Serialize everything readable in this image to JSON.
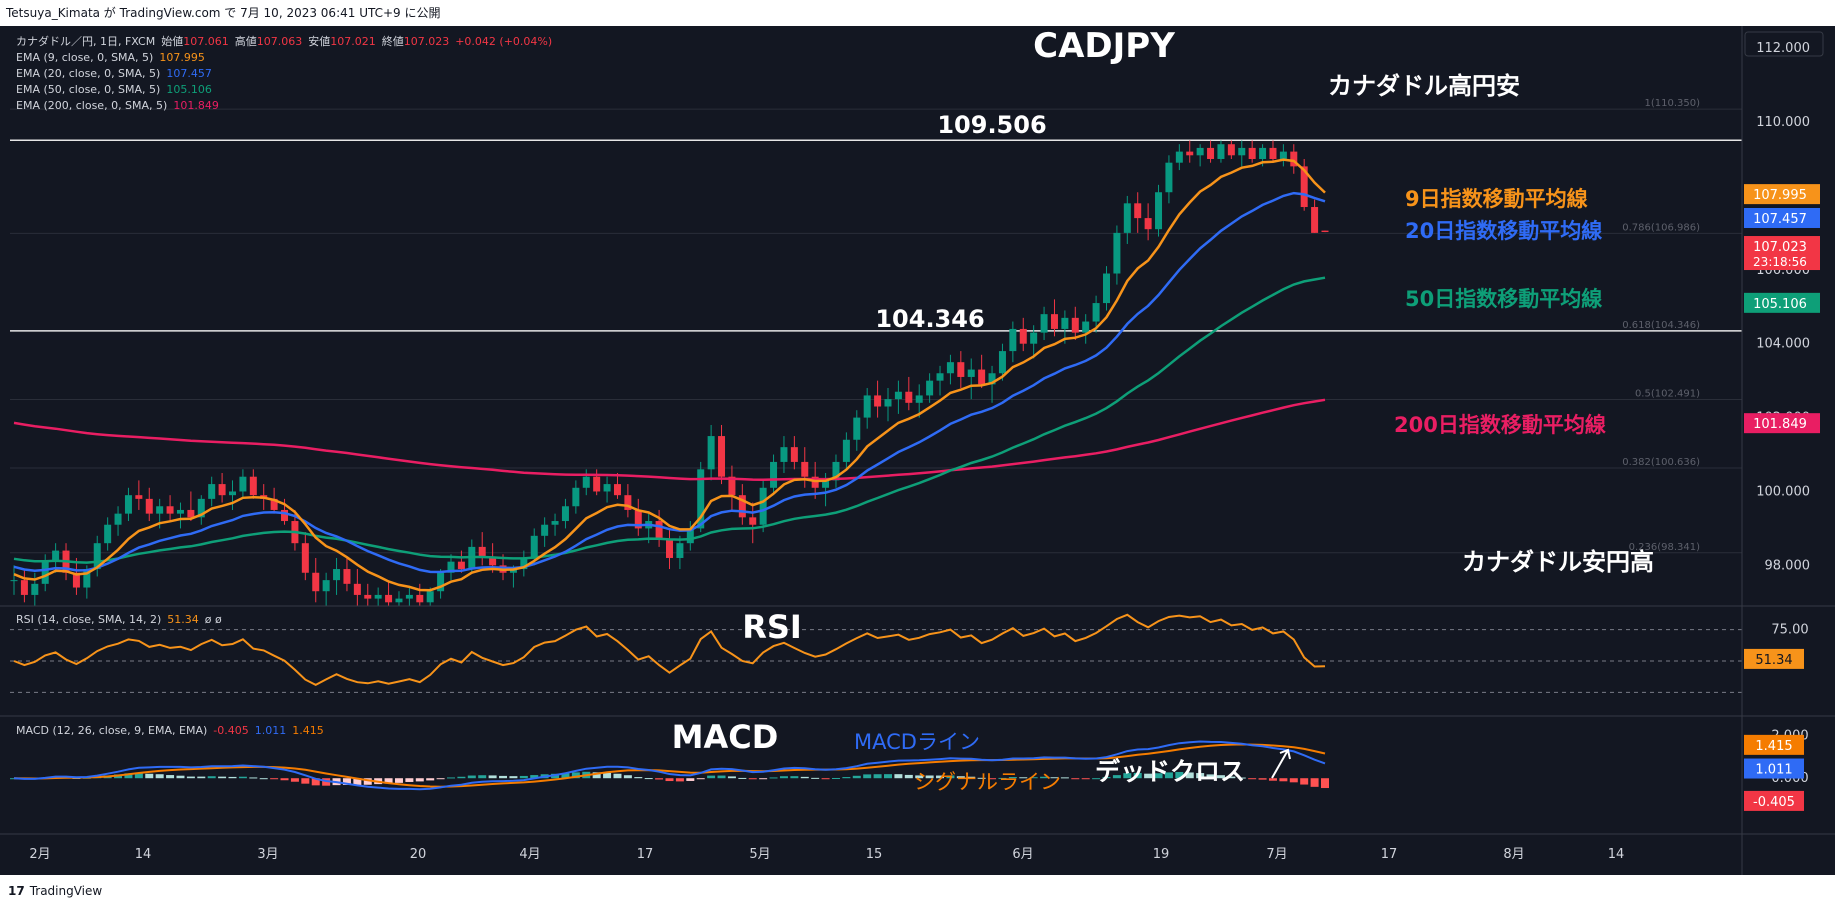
{
  "header": {
    "published_by": "Tetsuya_Kimata が TradingView.com で 7月 10, 2023 06:41 UTC+9 に公開"
  },
  "footer": {
    "brand": "TradingView",
    "logo_glyph": "17"
  },
  "legend": {
    "symbol_line": {
      "symbol": "カナダドル／円, 1日, FXCM",
      "open_label": "始値",
      "open": "107.061",
      "high_label": "高値",
      "high": "107.063",
      "low_label": "安値",
      "low": "107.021",
      "close_label": "終値",
      "close": "107.023",
      "change": "+0.042 (+0.04%)"
    },
    "ema_lines": [
      {
        "label": "EMA (9, close, 0, SMA, 5)",
        "value": "107.995",
        "color": "#f7931a"
      },
      {
        "label": "EMA (20, close, 0, SMA, 5)",
        "value": "107.457",
        "color": "#2f6bf5"
      },
      {
        "label": "EMA (50, close, 0, SMA, 5)",
        "value": "105.106",
        "color": "#0e9f78"
      },
      {
        "label": "EMA (200, close, 0, SMA, 5)",
        "value": "101.849",
        "color": "#e91e63"
      }
    ],
    "rsi": {
      "label": "RSI (14, close, SMA, 14, 2)",
      "value": "51.34",
      "extra": "ø ø"
    },
    "macd": {
      "label": "MACD (12, 26, close, 9, EMA, EMA)",
      "hist": "-0.405",
      "macd": "1.011",
      "signal": "1.415"
    }
  },
  "annotations": {
    "title": "CADJPY",
    "cad_high": "カナダドル高円安",
    "cad_low": "カナダドル安円高",
    "level_high": "109.506",
    "level_mid": "104.346",
    "ema9": "9日指数移動平均線",
    "ema20": "20日指数移動平均線",
    "ema50": "50日指数移動平均線",
    "ema200": "200日指数移動平均線",
    "rsi": "RSI",
    "macd": "MACD",
    "macd_line": "MACDライン",
    "signal_line": "シグナルライン",
    "dead_cross": "デッドクロス"
  },
  "fib_levels": [
    {
      "price": 110.35,
      "label": "1(110.350)"
    },
    {
      "price": 106.986,
      "label": "0.786(106.986)"
    },
    {
      "price": 104.346,
      "label": "0.618(104.346)"
    },
    {
      "price": 102.491,
      "label": "0.5(102.491)"
    },
    {
      "price": 100.636,
      "label": "0.382(100.636)"
    },
    {
      "price": 98.341,
      "label": "0.236(98.341)"
    }
  ],
  "price_axis": {
    "ticks": [
      "112.000",
      "110.000",
      "108.000",
      "106.000",
      "104.000",
      "102.000",
      "100.000",
      "98.000"
    ],
    "badges": [
      {
        "price": 107.995,
        "text": "107.995",
        "color": "#f7931a"
      },
      {
        "price": 107.457,
        "text": "107.457",
        "color": "#2f6bf5"
      },
      {
        "price": 107.023,
        "text": "107.023",
        "sub": "23:18:56",
        "color": "#f23645"
      },
      {
        "price": 105.106,
        "text": "105.106",
        "color": "#0e9f78"
      },
      {
        "price": 101.849,
        "text": "101.849",
        "color": "#e91e63"
      }
    ]
  },
  "rsi_axis": {
    "ticks": [
      "75.00"
    ],
    "badge": "51.34"
  },
  "macd_axis": {
    "ticks": [
      "2.000",
      "0.000"
    ],
    "badges": [
      {
        "text": "1.415",
        "color": "#f57c00"
      },
      {
        "text": "1.011",
        "color": "#2f6bf5"
      },
      {
        "text": "-0.405",
        "color": "#f23645"
      }
    ]
  },
  "time_axis": [
    "2月",
    "14",
    "3月",
    "20",
    "4月",
    "17",
    "5月",
    "15",
    "6月",
    "19",
    "7月",
    "17",
    "8月",
    "14"
  ],
  "chart_data": {
    "type": "candlestick",
    "symbol": "CADJPY",
    "timeframe": "1日",
    "y_range": [
      96.9,
      112.6
    ],
    "horizontal_levels": [
      109.506,
      104.346
    ],
    "ohlc": [
      [
        97.6,
        98.0,
        97.2,
        97.6
      ],
      [
        97.6,
        97.9,
        97.0,
        97.2
      ],
      [
        97.2,
        97.8,
        96.9,
        97.5
      ],
      [
        97.5,
        98.3,
        97.3,
        98.1
      ],
      [
        98.1,
        98.6,
        97.8,
        98.4
      ],
      [
        98.4,
        98.6,
        97.6,
        97.8
      ],
      [
        97.8,
        98.2,
        97.2,
        97.4
      ],
      [
        97.4,
        98.0,
        97.1,
        97.9
      ],
      [
        97.9,
        98.8,
        97.7,
        98.6
      ],
      [
        98.6,
        99.3,
        98.4,
        99.1
      ],
      [
        99.1,
        99.6,
        98.8,
        99.4
      ],
      [
        99.4,
        100.1,
        99.2,
        99.9
      ],
      [
        99.9,
        100.3,
        99.5,
        99.8
      ],
      [
        99.8,
        100.1,
        99.2,
        99.4
      ],
      [
        99.4,
        99.8,
        99.0,
        99.6
      ],
      [
        99.6,
        99.9,
        99.2,
        99.4
      ],
      [
        99.4,
        99.7,
        99.0,
        99.5
      ],
      [
        99.5,
        100.0,
        99.2,
        99.3
      ],
      [
        99.3,
        99.9,
        99.1,
        99.8
      ],
      [
        99.8,
        100.4,
        99.6,
        100.2
      ],
      [
        100.2,
        100.5,
        99.7,
        99.9
      ],
      [
        99.9,
        100.3,
        99.5,
        100.0
      ],
      [
        100.0,
        100.6,
        99.8,
        100.4
      ],
      [
        100.4,
        100.6,
        99.8,
        99.9
      ],
      [
        99.9,
        100.2,
        99.5,
        99.8
      ],
      [
        99.8,
        100.1,
        99.4,
        99.5
      ],
      [
        99.5,
        99.8,
        99.1,
        99.2
      ],
      [
        99.2,
        99.5,
        98.4,
        98.6
      ],
      [
        98.6,
        98.9,
        97.6,
        97.8
      ],
      [
        97.8,
        98.2,
        97.0,
        97.3
      ],
      [
        97.3,
        97.8,
        96.9,
        97.6
      ],
      [
        97.6,
        98.2,
        97.2,
        97.9
      ],
      [
        97.9,
        98.2,
        97.3,
        97.5
      ],
      [
        97.5,
        97.9,
        96.9,
        97.2
      ],
      [
        97.2,
        97.5,
        96.9,
        97.1
      ],
      [
        97.1,
        97.4,
        96.9,
        97.2
      ],
      [
        97.2,
        97.6,
        96.9,
        97.0
      ],
      [
        97.0,
        97.3,
        96.9,
        97.1
      ],
      [
        97.1,
        97.4,
        96.9,
        97.2
      ],
      [
        97.2,
        97.5,
        96.9,
        97.0
      ],
      [
        97.0,
        97.4,
        96.9,
        97.3
      ],
      [
        97.3,
        97.9,
        97.1,
        97.8
      ],
      [
        97.8,
        98.3,
        97.6,
        98.1
      ],
      [
        98.1,
        98.4,
        97.8,
        97.9
      ],
      [
        97.9,
        98.7,
        97.8,
        98.5
      ],
      [
        98.5,
        98.9,
        98.0,
        98.2
      ],
      [
        98.2,
        98.6,
        97.8,
        98.0
      ],
      [
        98.0,
        98.3,
        97.6,
        97.8
      ],
      [
        97.8,
        98.0,
        97.4,
        97.9
      ],
      [
        97.9,
        98.4,
        97.7,
        98.2
      ],
      [
        98.2,
        99.0,
        98.0,
        98.8
      ],
      [
        98.8,
        99.3,
        98.5,
        99.1
      ],
      [
        99.1,
        99.4,
        98.8,
        99.2
      ],
      [
        99.2,
        99.8,
        99.0,
        99.6
      ],
      [
        99.6,
        100.3,
        99.4,
        100.1
      ],
      [
        100.1,
        100.6,
        99.9,
        100.4
      ],
      [
        100.4,
        100.6,
        99.9,
        100.0
      ],
      [
        100.0,
        100.4,
        99.7,
        100.2
      ],
      [
        100.2,
        100.5,
        99.8,
        99.9
      ],
      [
        99.9,
        100.2,
        99.3,
        99.5
      ],
      [
        99.5,
        99.8,
        98.8,
        99.0
      ],
      [
        99.0,
        99.4,
        98.6,
        99.2
      ],
      [
        99.2,
        99.5,
        98.5,
        98.7
      ],
      [
        98.7,
        99.0,
        97.9,
        98.2
      ],
      [
        98.2,
        98.8,
        97.9,
        98.6
      ],
      [
        98.6,
        99.2,
        98.4,
        99.0
      ],
      [
        99.0,
        100.8,
        98.9,
        100.6
      ],
      [
        100.6,
        101.8,
        100.3,
        101.5
      ],
      [
        101.5,
        101.8,
        100.2,
        100.4
      ],
      [
        100.4,
        100.7,
        99.5,
        99.9
      ],
      [
        99.9,
        100.2,
        99.1,
        99.3
      ],
      [
        99.3,
        99.7,
        98.6,
        99.1
      ],
      [
        99.1,
        100.3,
        98.9,
        100.1
      ],
      [
        100.1,
        101.0,
        99.9,
        100.8
      ],
      [
        100.8,
        101.5,
        100.5,
        101.2
      ],
      [
        101.2,
        101.5,
        100.6,
        100.8
      ],
      [
        100.8,
        101.2,
        100.1,
        100.4
      ],
      [
        100.4,
        100.8,
        99.8,
        100.1
      ],
      [
        100.1,
        100.5,
        99.6,
        100.3
      ],
      [
        100.3,
        101.0,
        100.1,
        100.8
      ],
      [
        100.8,
        101.6,
        100.6,
        101.4
      ],
      [
        101.4,
        102.2,
        101.1,
        102.0
      ],
      [
        102.0,
        102.8,
        101.7,
        102.6
      ],
      [
        102.6,
        103.0,
        102.0,
        102.3
      ],
      [
        102.3,
        102.8,
        101.9,
        102.5
      ],
      [
        102.5,
        103.0,
        102.1,
        102.7
      ],
      [
        102.7,
        103.1,
        102.2,
        102.4
      ],
      [
        102.4,
        102.9,
        102.0,
        102.6
      ],
      [
        102.6,
        103.2,
        102.4,
        103.0
      ],
      [
        103.0,
        103.4,
        102.6,
        103.2
      ],
      [
        103.2,
        103.7,
        102.9,
        103.5
      ],
      [
        103.5,
        103.8,
        102.8,
        103.1
      ],
      [
        103.1,
        103.6,
        102.5,
        103.3
      ],
      [
        103.3,
        103.7,
        102.8,
        102.9
      ],
      [
        102.9,
        103.4,
        102.4,
        103.2
      ],
      [
        103.2,
        104.0,
        103.0,
        103.8
      ],
      [
        103.8,
        104.6,
        103.5,
        104.4
      ],
      [
        104.4,
        104.7,
        103.8,
        104.0
      ],
      [
        104.0,
        104.5,
        103.6,
        104.3
      ],
      [
        104.3,
        105.0,
        104.1,
        104.8
      ],
      [
        104.8,
        105.2,
        104.2,
        104.4
      ],
      [
        104.4,
        104.9,
        104.0,
        104.7
      ],
      [
        104.7,
        105.0,
        104.1,
        104.3
      ],
      [
        104.3,
        104.8,
        104.0,
        104.6
      ],
      [
        104.6,
        105.3,
        104.3,
        105.1
      ],
      [
        105.1,
        106.1,
        104.9,
        105.9
      ],
      [
        105.9,
        107.2,
        105.6,
        107.0
      ],
      [
        107.0,
        108.0,
        106.7,
        107.8
      ],
      [
        107.8,
        108.1,
        107.0,
        107.4
      ],
      [
        107.4,
        107.8,
        106.8,
        107.1
      ],
      [
        107.1,
        108.3,
        106.9,
        108.1
      ],
      [
        108.1,
        109.1,
        107.8,
        108.9
      ],
      [
        108.9,
        109.4,
        108.7,
        109.2
      ],
      [
        109.2,
        109.5,
        108.9,
        109.1
      ],
      [
        109.1,
        109.4,
        108.8,
        109.3
      ],
      [
        109.3,
        109.5,
        108.9,
        109.0
      ],
      [
        109.0,
        109.5,
        108.9,
        109.4
      ],
      [
        109.4,
        109.5,
        109.0,
        109.1
      ],
      [
        109.1,
        109.5,
        108.8,
        109.3
      ],
      [
        109.3,
        109.5,
        108.9,
        109.0
      ],
      [
        109.0,
        109.4,
        108.8,
        109.3
      ],
      [
        109.3,
        109.5,
        108.9,
        109.0
      ],
      [
        109.0,
        109.4,
        108.8,
        109.2
      ],
      [
        109.2,
        109.4,
        108.6,
        108.8
      ],
      [
        108.8,
        109.0,
        107.6,
        107.7
      ],
      [
        107.7,
        107.9,
        107.0,
        107.0
      ],
      [
        107.061,
        107.063,
        107.021,
        107.023
      ]
    ],
    "series": [
      {
        "name": "EMA (9, close, 0, SMA, 5)",
        "color": "#f7931a"
      },
      {
        "name": "EMA (20, close, 0, SMA, 5)",
        "color": "#2f6bf5"
      },
      {
        "name": "EMA (50, close, 0, SMA, 5)",
        "color": "#0e9f78"
      },
      {
        "name": "EMA (200, close, 0, SMA, 5)",
        "color": "#e91e63"
      }
    ],
    "ema200_start": 101.9,
    "rsi": {
      "range": [
        15,
        85
      ],
      "bands": [
        70,
        50,
        30
      ],
      "last": 51.34
    },
    "macd": {
      "last_macd": 1.011,
      "last_signal": 1.415,
      "last_hist": -0.405
    }
  }
}
